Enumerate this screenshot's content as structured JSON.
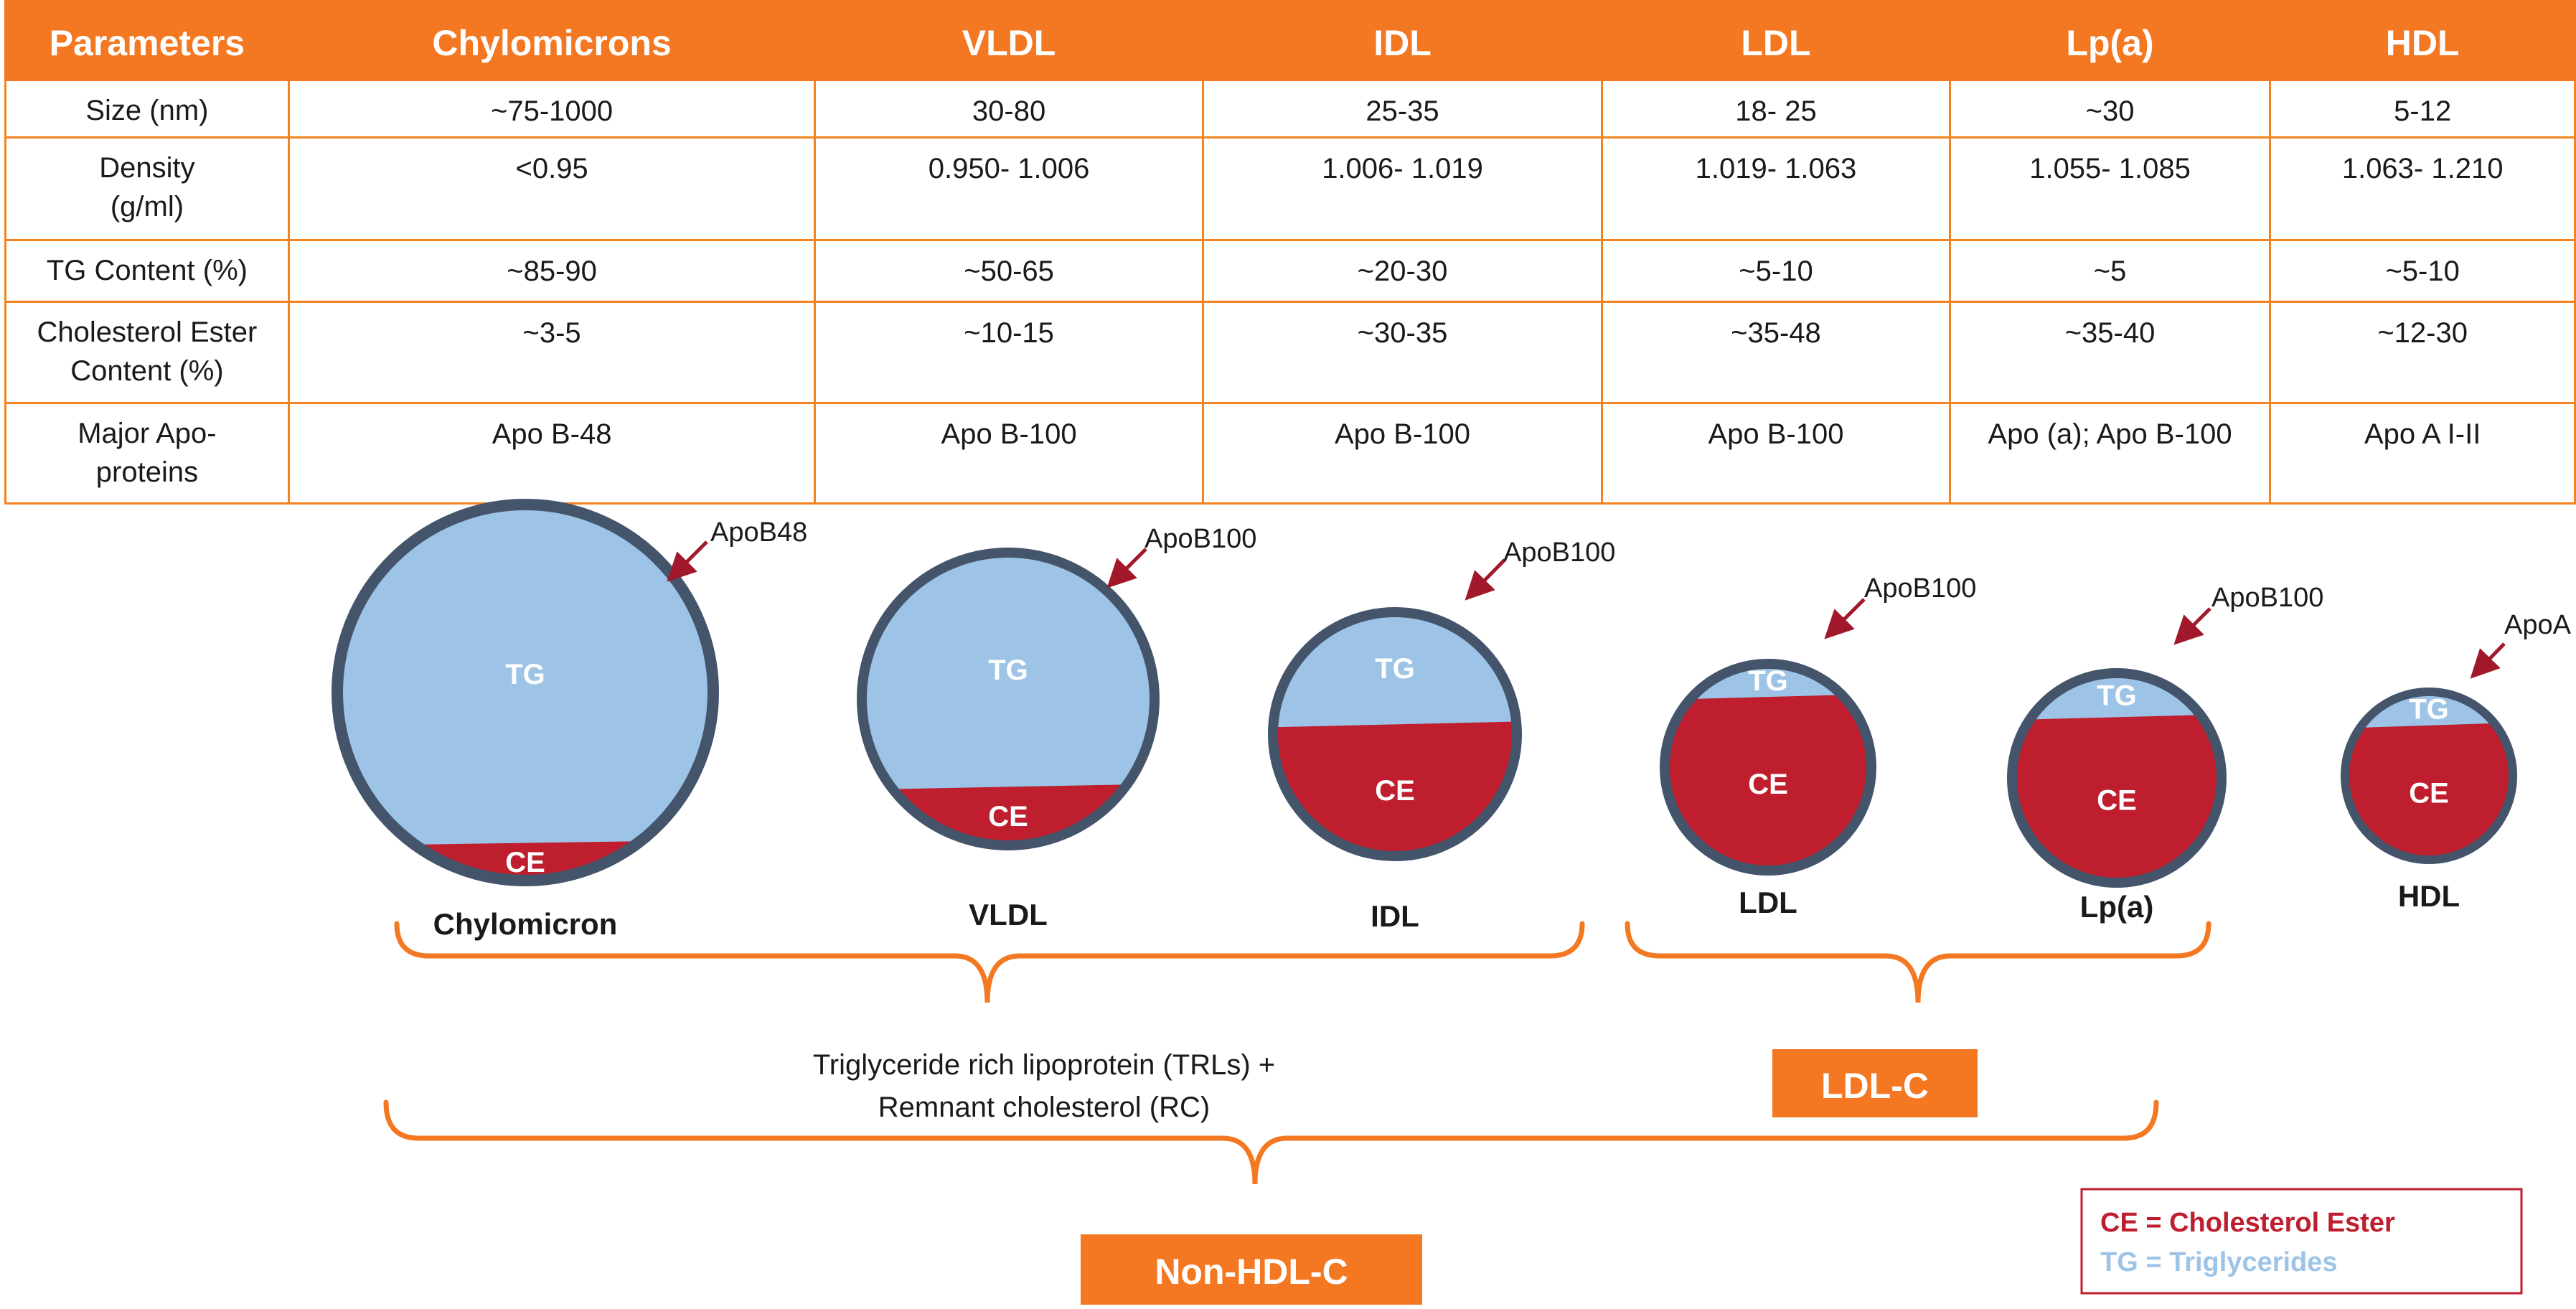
{
  "table": {
    "headers": [
      "Parameters",
      "Chylomicrons",
      "VLDL",
      "IDL",
      "LDL",
      "Lp(a)",
      "HDL"
    ],
    "rows": [
      {
        "parameter": "Size (nm)",
        "values": [
          "~75-1000",
          "30-80",
          "25-35",
          "18- 25",
          "~30",
          "5-12"
        ]
      },
      {
        "parameter": "Density\n(g/ml)",
        "values": [
          "<0.95",
          "0.950- 1.006",
          "1.006- 1.019",
          "1.019- 1.063",
          "1.055- 1.085",
          "1.063- 1.210"
        ]
      },
      {
        "parameter": "TG Content (%)",
        "values": [
          "~85-90",
          "~50-65",
          "~20-30",
          "~5-10",
          "~5",
          "~5-10"
        ]
      },
      {
        "parameter": "Cholesterol Ester\nContent (%)",
        "values": [
          "~3-5",
          "~10-15",
          "~30-35",
          "~35-48",
          "~35-40",
          "~12-30"
        ]
      },
      {
        "parameter": "Major Apo-\nproteins",
        "values": [
          "Apo B-48",
          "Apo B-100",
          "Apo B-100",
          "Apo B-100",
          "Apo (a); Apo B-100",
          "Apo A I-II"
        ]
      }
    ]
  },
  "particles": [
    {
      "name": "Chylomicron",
      "apo": "ApoB48",
      "tg_label": "TG",
      "ce_label": "CE",
      "tg_fraction": 0.9
    },
    {
      "name": "VLDL",
      "apo": "ApoB100",
      "tg_label": "TG",
      "ce_label": "CE",
      "tg_fraction": 0.8
    },
    {
      "name": "IDL",
      "apo": "ApoB100",
      "tg_label": "TG",
      "ce_label": "CE",
      "tg_fraction": 0.46
    },
    {
      "name": "LDL",
      "apo": "ApoB100",
      "tg_label": "TG",
      "ce_label": "CE",
      "tg_fraction": 0.16
    },
    {
      "name": "Lp(a)",
      "apo": "ApoB100",
      "tg_label": "TG",
      "ce_label": "CE",
      "tg_fraction": 0.21
    },
    {
      "name": "HDL",
      "apo": "ApoA I-II",
      "tg_label": "TG",
      "ce_label": "CE",
      "tg_fraction": 0.2
    }
  ],
  "groups": {
    "trl_line1": "Triglyceride rich lipoprotein (TRLs)  +",
    "trl_line2": "Remnant cholesterol (RC)",
    "ldl_c": "LDL-C",
    "non_hdl_c": "Non-HDL-C"
  },
  "legend": {
    "ce": "CE = Cholesterol Ester",
    "tg": "TG = Triglycerides"
  },
  "colors": {
    "orange": "#f47721",
    "tg": "#9dc3e6",
    "ce": "#be1e2d",
    "outline": "#44546a",
    "arrow": "#a0182a"
  }
}
